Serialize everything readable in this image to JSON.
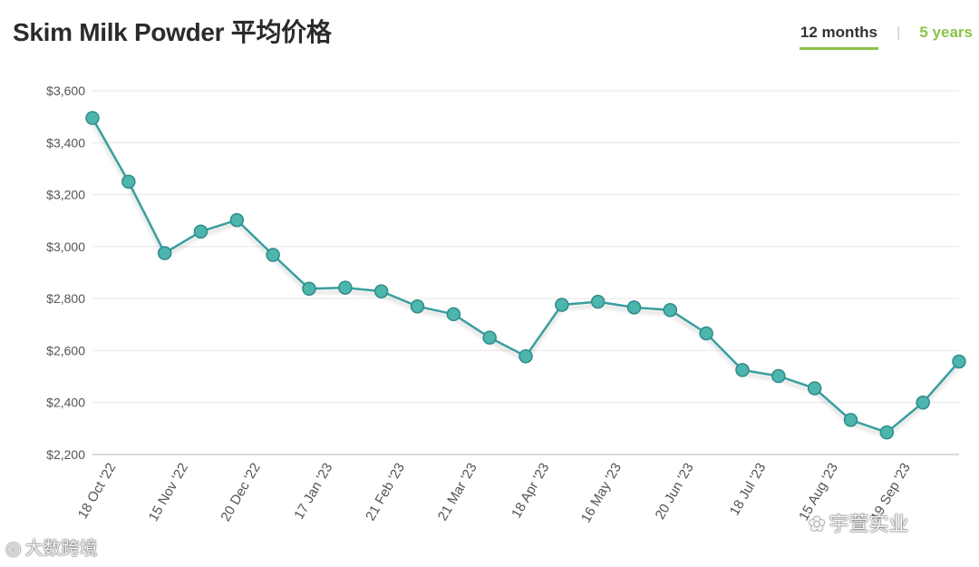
{
  "header": {
    "title": "Skim Milk Powder 平均价格",
    "tabs": [
      {
        "label": "12 months",
        "active": true
      },
      {
        "label": "5 years",
        "active": false
      }
    ],
    "separator": "|"
  },
  "colors": {
    "line": "#3a9e9e",
    "marker_fill": "#4db6ac",
    "marker_stroke": "#2e8b8b",
    "accent": "#8bc34a",
    "grid": "#e6e6e6"
  },
  "watermarks": {
    "left": "大数跨境",
    "right": "宇萱实业"
  },
  "chart_data": {
    "type": "line",
    "title": "Skim Milk Powder 平均价格",
    "xlabel": "",
    "ylabel": "",
    "ylim": [
      2200,
      3600
    ],
    "yticks": [
      2200,
      2400,
      2600,
      2800,
      3000,
      3200,
      3400,
      3600
    ],
    "ytick_labels": [
      "$2,200",
      "$2,400",
      "$2,600",
      "$2,800",
      "$3,000",
      "$3,200",
      "$3,400",
      "$3,600"
    ],
    "grid": true,
    "legend": "none",
    "x_labels": [
      {
        "index": 0.5,
        "label": "18 Oct '22"
      },
      {
        "index": 2.5,
        "label": "15 Nov '22"
      },
      {
        "index": 4.5,
        "label": "20 Dec '22"
      },
      {
        "index": 6.5,
        "label": "17 Jan '23"
      },
      {
        "index": 8.5,
        "label": "21 Feb '23"
      },
      {
        "index": 10.5,
        "label": "21 Mar '23"
      },
      {
        "index": 12.5,
        "label": "18 Apr '23"
      },
      {
        "index": 14.5,
        "label": "16 May '23"
      },
      {
        "index": 16.5,
        "label": "20 Jun '23"
      },
      {
        "index": 18.5,
        "label": "18 Jul '23"
      },
      {
        "index": 20.5,
        "label": "15 Aug '23"
      },
      {
        "index": 22.5,
        "label": "19 Sep '23"
      }
    ],
    "series": [
      {
        "values": [
          3495,
          3250,
          2975,
          3058,
          3102,
          2968,
          2838,
          2842,
          2828,
          2770,
          2740,
          2650,
          2578,
          2776,
          2788,
          2766,
          2756,
          2666,
          2525,
          2502,
          2455,
          2333,
          2285,
          2400,
          2558
        ]
      }
    ]
  }
}
